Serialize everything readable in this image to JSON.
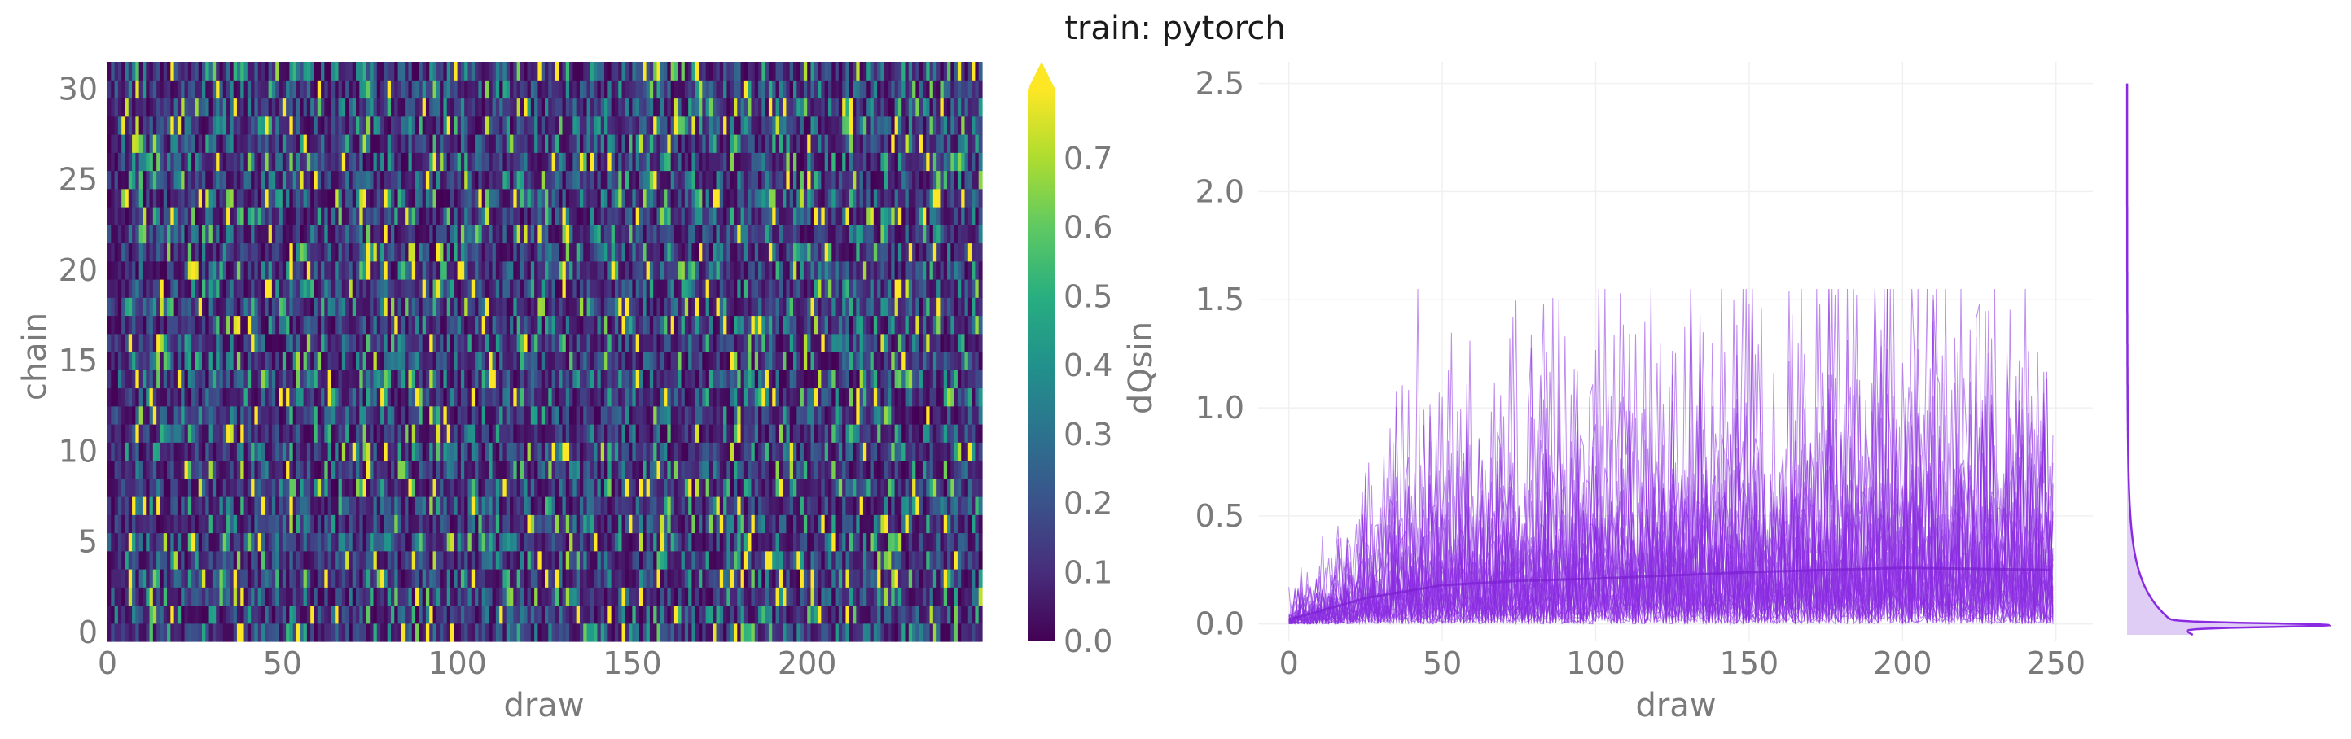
{
  "title": "train: pytorch",
  "chart_data": [
    {
      "type": "heatmap",
      "xlabel": "draw",
      "ylabel": "chain",
      "x_ticks": [
        "0",
        "50",
        "100",
        "150",
        "200"
      ],
      "y_ticks": [
        "0",
        "5",
        "10",
        "15",
        "20",
        "25",
        "30"
      ],
      "n_draws": 250,
      "n_chains": 32,
      "xlim": [
        0,
        250
      ],
      "ylim": [
        0,
        32
      ],
      "colormap": "viridis",
      "colorbar": {
        "label": "dQsin",
        "ticks": [
          "0.0",
          "0.1",
          "0.2",
          "0.3",
          "0.4",
          "0.5",
          "0.6",
          "0.7"
        ],
        "range": [
          0,
          0.8
        ],
        "extend": "max"
      },
      "value_summary": {
        "min": 0.0,
        "typical_max": 0.8,
        "mean_approx": 0.2
      }
    },
    {
      "type": "line",
      "xlabel": "draw",
      "ylabel": "",
      "x_ticks": [
        "0",
        "50",
        "100",
        "150",
        "200",
        "250"
      ],
      "y_ticks": [
        "0.0",
        "0.5",
        "1.0",
        "1.5",
        "2.0",
        "2.5"
      ],
      "xlim": [
        -10,
        262
      ],
      "ylim": [
        -0.08,
        2.6
      ],
      "n_traces": 32,
      "n_draws": 250,
      "color": "#8a2be2",
      "mean_trace": {
        "x": [
          0,
          25,
          50,
          75,
          100,
          150,
          200,
          250
        ],
        "y": [
          0.02,
          0.12,
          0.18,
          0.2,
          0.21,
          0.24,
          0.26,
          0.25
        ]
      },
      "peak_values": [
        {
          "x": 108,
          "y": 1.53
        },
        {
          "x": 185,
          "y": 1.52
        },
        {
          "x": 210,
          "y": 1.52
        },
        {
          "x": 150,
          "y": 1.48
        },
        {
          "x": 228,
          "y": 1.45
        },
        {
          "x": 135,
          "y": 1.35
        },
        {
          "x": 121,
          "y": 1.3
        },
        {
          "x": 168,
          "y": 1.25
        },
        {
          "x": 84,
          "y": 1.0
        },
        {
          "x": 50,
          "y": 1.05
        },
        {
          "x": 62,
          "y": 0.85
        },
        {
          "x": 25,
          "y": 0.7
        }
      ],
      "marginal_density": {
        "type": "kde",
        "orientation": "vertical",
        "mode": 0.0,
        "y_max": 2.5
      }
    }
  ],
  "colors": {
    "trace": "#8a2be2",
    "density_fill": "#ddc8f5",
    "grid": "#f0f0f0",
    "tick_text": "#7a7a7a"
  }
}
